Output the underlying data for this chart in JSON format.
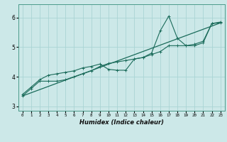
{
  "xlabel": "Humidex (Indice chaleur)",
  "ylabel": "",
  "bg_color": "#cce8e8",
  "line_color": "#1a6b5a",
  "grid_color": "#aad4d4",
  "xlim": [
    -0.5,
    23.5
  ],
  "ylim": [
    2.85,
    6.45
  ],
  "x_ticks": [
    0,
    1,
    2,
    3,
    4,
    5,
    6,
    7,
    8,
    9,
    10,
    11,
    12,
    13,
    14,
    15,
    16,
    17,
    18,
    19,
    20,
    21,
    22,
    23
  ],
  "y_ticks": [
    3,
    4,
    5,
    6
  ],
  "line1_x": [
    0,
    1,
    2,
    3,
    4,
    5,
    6,
    7,
    8,
    9,
    10,
    11,
    12,
    13,
    14,
    15,
    16,
    17,
    18,
    19,
    20,
    21,
    22,
    23
  ],
  "line1_y": [
    3.4,
    3.65,
    3.9,
    4.05,
    4.1,
    4.15,
    4.2,
    4.3,
    4.35,
    4.43,
    4.25,
    4.22,
    4.22,
    4.6,
    4.65,
    4.8,
    5.55,
    6.05,
    5.3,
    5.05,
    5.1,
    5.2,
    5.8,
    5.85
  ],
  "line2_x": [
    0,
    1,
    2,
    3,
    4,
    5,
    6,
    7,
    8,
    9,
    10,
    11,
    12,
    13,
    14,
    15,
    16,
    17,
    18,
    19,
    20,
    21,
    22,
    23
  ],
  "line2_y": [
    3.35,
    3.6,
    3.85,
    3.85,
    3.85,
    3.9,
    4.0,
    4.1,
    4.2,
    4.35,
    4.45,
    4.5,
    4.55,
    4.6,
    4.65,
    4.75,
    4.85,
    5.05,
    5.05,
    5.05,
    5.05,
    5.15,
    5.8,
    5.82
  ],
  "line3_x": [
    0,
    23
  ],
  "line3_y": [
    3.35,
    5.82
  ]
}
